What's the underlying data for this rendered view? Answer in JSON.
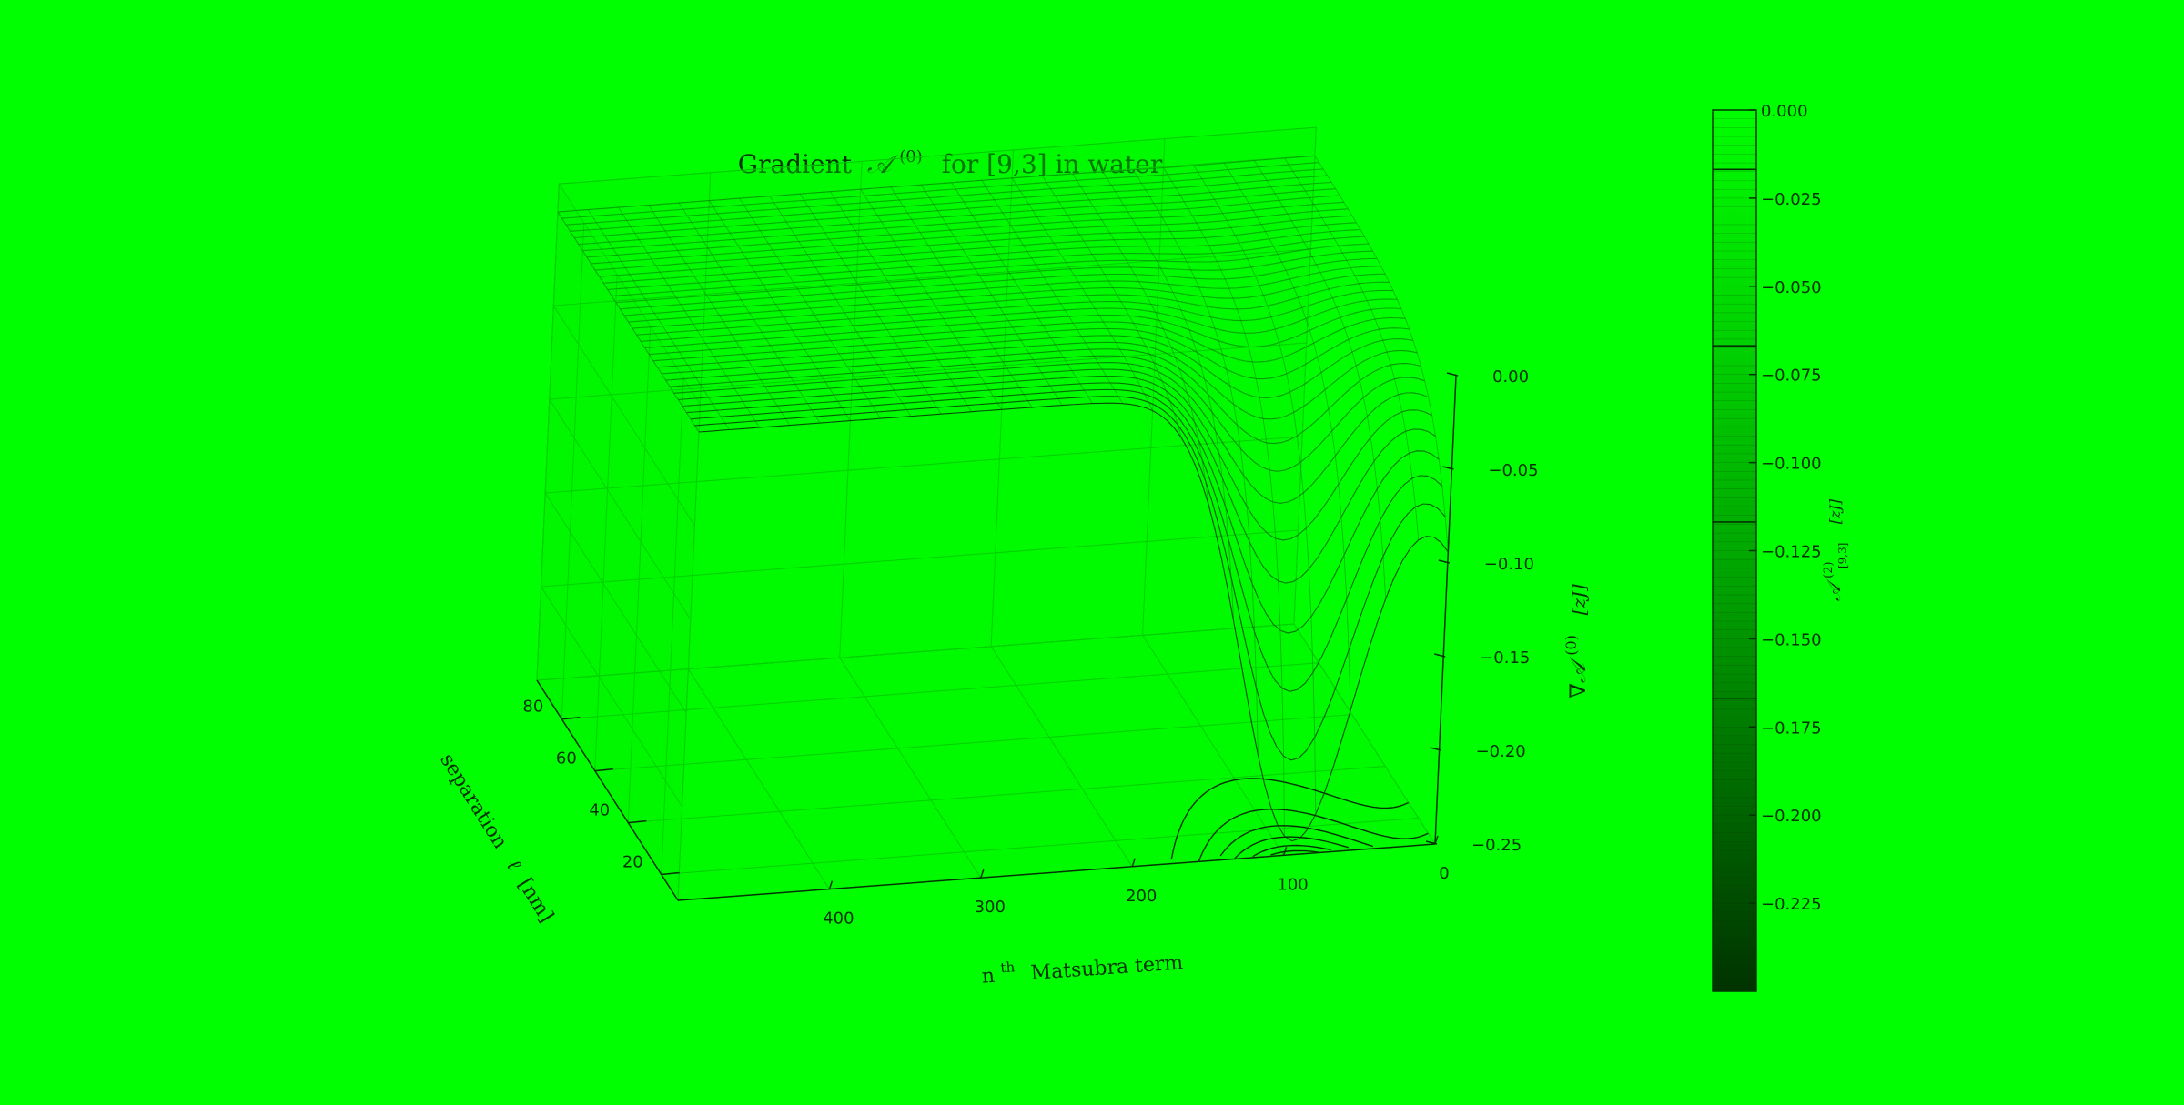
{
  "chart_data": {
    "type": "surface3d",
    "title_prefix": "Gradient",
    "title_symbol": "𝒜",
    "title_superscript": "(0)",
    "title_suffix": "for [9,3] in water",
    "axes": {
      "x": {
        "label_main": "n",
        "label_superscript": "th",
        "label_rest": "Matsubra term",
        "ticks": [
          "400",
          "300",
          "200",
          "100",
          "0"
        ],
        "range": [
          0,
          500
        ]
      },
      "y": {
        "label_main": "separation",
        "label_symbol": "ℓ",
        "label_unit": "[nm]",
        "ticks": [
          "80",
          "60",
          "40",
          "20"
        ],
        "range": [
          10,
          95
        ]
      },
      "z": {
        "label_symbol": "∇𝒜",
        "label_superscript": "(0)",
        "label_unit": "[zJ]",
        "ticks": [
          "0.00",
          "−0.05",
          "−0.10",
          "−0.15",
          "−0.20",
          "−0.25"
        ],
        "range": [
          -0.25,
          0.0
        ]
      }
    },
    "colorbar": {
      "ticks": [
        "0.000",
        "−0.025",
        "−0.050",
        "−0.075",
        "−0.100",
        "−0.125",
        "−0.150",
        "−0.175",
        "−0.200",
        "−0.225"
      ],
      "range": [
        -0.25,
        0.0
      ],
      "label_symbol": "𝒜",
      "label_superscript": "(2)",
      "label_subscript": "[9,3]",
      "label_unit": "[zJ]",
      "colors": [
        "#00ff00",
        "#004400",
        "#002200"
      ]
    },
    "surface_model": {
      "description_free": true,
      "n_min": 0,
      "n_max": 500,
      "l_min": 10,
      "l_max": 95,
      "min_value": -0.235,
      "trough_n": 95,
      "trough_width": 55,
      "decay_length_nm": 14
    }
  }
}
